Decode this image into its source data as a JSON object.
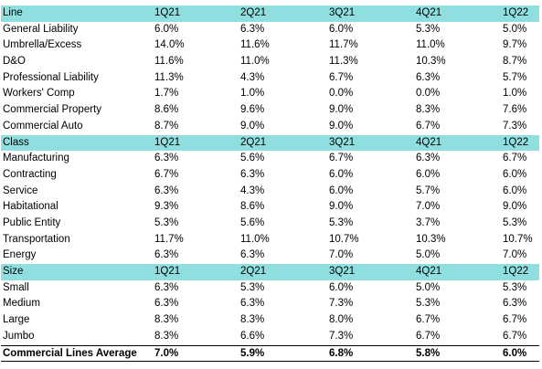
{
  "headers": [
    "1Q21",
    "2Q21",
    "3Q21",
    "4Q21",
    "1Q22"
  ],
  "sections": [
    {
      "title": "Line",
      "rows": [
        {
          "label": "General Liability",
          "values": [
            "6.0%",
            "6.3%",
            "6.0%",
            "5.3%",
            "5.0%"
          ]
        },
        {
          "label": "Umbrella/Excess",
          "values": [
            "14.0%",
            "11.6%",
            "11.7%",
            "11.0%",
            "9.7%"
          ]
        },
        {
          "label": "D&O",
          "values": [
            "11.6%",
            "11.0%",
            "11.3%",
            "10.3%",
            "8.7%"
          ]
        },
        {
          "label": "Professional Liability",
          "values": [
            "11.3%",
            "4.3%",
            "6.7%",
            "6.3%",
            "5.7%"
          ]
        },
        {
          "label": "Workers' Comp",
          "values": [
            "1.7%",
            "1.0%",
            "0.0%",
            "0.0%",
            "1.0%"
          ]
        },
        {
          "label": "Commercial Property",
          "values": [
            "8.6%",
            "9.6%",
            "9.0%",
            "8.3%",
            "7.6%"
          ]
        },
        {
          "label": "Commercial Auto",
          "values": [
            "8.7%",
            "9.0%",
            "9.0%",
            "6.7%",
            "7.3%"
          ]
        }
      ]
    },
    {
      "title": "Class",
      "rows": [
        {
          "label": "Manufacturing",
          "values": [
            "6.3%",
            "5.6%",
            "6.7%",
            "6.3%",
            "6.7%"
          ]
        },
        {
          "label": "Contracting",
          "values": [
            "6.7%",
            "6.3%",
            "6.0%",
            "6.0%",
            "6.0%"
          ]
        },
        {
          "label": "Service",
          "values": [
            "6.3%",
            "4.3%",
            "6.0%",
            "5.7%",
            "6.0%"
          ]
        },
        {
          "label": "Habitational",
          "values": [
            "9.3%",
            "8.6%",
            "9.0%",
            "7.0%",
            "9.0%"
          ]
        },
        {
          "label": "Public Entity",
          "values": [
            "5.3%",
            "5.6%",
            "5.3%",
            "3.7%",
            "5.3%"
          ]
        },
        {
          "label": "Transportation",
          "values": [
            "11.7%",
            "11.0%",
            "10.7%",
            "10.3%",
            "10.7%"
          ]
        },
        {
          "label": "Energy",
          "values": [
            "6.3%",
            "6.3%",
            "7.0%",
            "5.0%",
            "7.0%"
          ]
        }
      ]
    },
    {
      "title": "Size",
      "rows": [
        {
          "label": "Small",
          "values": [
            "6.3%",
            "5.3%",
            "6.0%",
            "5.0%",
            "5.3%"
          ]
        },
        {
          "label": "Medium",
          "values": [
            "6.3%",
            "6.3%",
            "7.3%",
            "5.3%",
            "6.3%"
          ]
        },
        {
          "label": "Large",
          "values": [
            "8.3%",
            "8.3%",
            "8.0%",
            "6.7%",
            "6.7%"
          ]
        },
        {
          "label": "Jumbo",
          "values": [
            "8.3%",
            "6.6%",
            "7.3%",
            "6.7%",
            "6.7%"
          ]
        }
      ]
    }
  ],
  "total": {
    "label": "Commercial Lines Average",
    "values": [
      "7.0%",
      "5.9%",
      "6.8%",
      "5.8%",
      "6.0%"
    ]
  },
  "colors": {
    "header_bg": "#8fdfe0",
    "text": "#000000"
  }
}
